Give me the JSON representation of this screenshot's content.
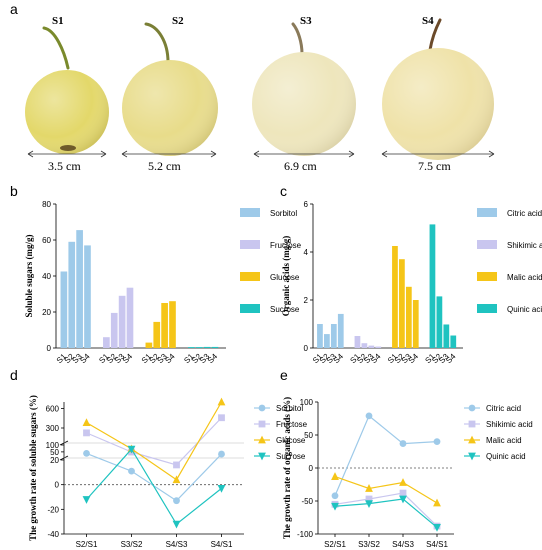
{
  "panels": {
    "a": "a",
    "b": "b",
    "c": "c",
    "d": "d",
    "e": "e"
  },
  "fruits": [
    {
      "stage": "S1",
      "size": "3.5 cm",
      "skin": "#e3d86a"
    },
    {
      "stage": "S2",
      "size": "5.2 cm",
      "skin": "#e8dc8a"
    },
    {
      "stage": "S3",
      "size": "6.9 cm",
      "skin": "#eee6bc"
    },
    {
      "stage": "S4",
      "size": "7.5 cm",
      "skin": "#efe2a8"
    }
  ],
  "chart_data": [
    {
      "id": "b",
      "type": "bar",
      "ylabel": "Soluble sugars (mg/g)",
      "ylim": [
        0,
        80
      ],
      "yticks": [
        0,
        20,
        40,
        60,
        80
      ],
      "categories": [
        "S1",
        "S2",
        "S3",
        "S4"
      ],
      "series": [
        {
          "name": "Sorbitol",
          "color": "#9ecae9",
          "values": [
            42.5,
            59,
            65.5,
            57
          ]
        },
        {
          "name": "Fructose",
          "color": "#c9c6ef",
          "values": [
            6,
            19.5,
            29,
            33.5
          ]
        },
        {
          "name": "Glucose",
          "color": "#f5c518",
          "values": [
            3,
            14.5,
            25,
            26
          ]
        },
        {
          "name": "Sucrose",
          "color": "#1fc3c0",
          "values": [
            0.5,
            0.5,
            0.6,
            0.6
          ]
        }
      ],
      "legend": "right"
    },
    {
      "id": "c",
      "type": "bar",
      "ylabel": "Organic acids (mg/g)",
      "ylim": [
        0,
        6
      ],
      "yticks": [
        0,
        2,
        4,
        6
      ],
      "categories": [
        "S1",
        "S2",
        "S3",
        "S4"
      ],
      "series": [
        {
          "name": "Citric acid",
          "color": "#9ecae9",
          "values": [
            1.0,
            0.58,
            1.0,
            1.42
          ]
        },
        {
          "name": "Shikimic acid",
          "color": "#c9c6ef",
          "values": [
            0.5,
            0.2,
            0.1,
            0.06
          ]
        },
        {
          "name": "Malic acid",
          "color": "#f5c518",
          "values": [
            4.25,
            3.7,
            2.55,
            2.0
          ]
        },
        {
          "name": "Quinic acid",
          "color": "#1fc3c0",
          "values": [
            5.15,
            2.15,
            0.98,
            0.52
          ]
        }
      ],
      "legend": "right"
    },
    {
      "id": "d",
      "type": "line",
      "ylabel": "The growth rate of soluble sugars (%)",
      "categories": [
        "S2/S1",
        "S3/S2",
        "S4/S3",
        "S4/S1"
      ],
      "yticks": [
        -40,
        -20,
        0,
        20,
        50,
        100,
        300,
        600
      ],
      "series": [
        {
          "name": "Sorbitol",
          "color": "#9ecae9",
          "marker": "circle",
          "values": [
            39,
            11,
            -13,
            34
          ]
        },
        {
          "name": "Fructose",
          "color": "#c9c6ef",
          "marker": "square",
          "values": [
            225,
            49,
            16,
            458
          ]
        },
        {
          "name": "Glucose",
          "color": "#f5c518",
          "marker": "triangle",
          "values": [
            383,
            72,
            4,
            767
          ]
        },
        {
          "name": "Sucrose",
          "color": "#1fc3c0",
          "marker": "triangle-down",
          "values": [
            -12,
            70,
            -32,
            -3
          ]
        }
      ],
      "reference_line": 0,
      "legend": "right"
    },
    {
      "id": "e",
      "type": "line",
      "ylabel": "The growth rate of organic acids (%)",
      "categories": [
        "S2/S1",
        "S3/S2",
        "S4/S3",
        "S4/S1"
      ],
      "ylim": [
        -100,
        100
      ],
      "yticks": [
        -100,
        -50,
        0,
        50,
        100
      ],
      "series": [
        {
          "name": "Citric acid",
          "color": "#9ecae9",
          "marker": "circle",
          "values": [
            -42,
            79,
            37,
            40
          ]
        },
        {
          "name": "Shikimic acid",
          "color": "#c9c6ef",
          "marker": "square",
          "values": [
            -55,
            -47,
            -38,
            -88
          ]
        },
        {
          "name": "Malic acid",
          "color": "#f5c518",
          "marker": "triangle",
          "values": [
            -13,
            -31,
            -22,
            -53
          ]
        },
        {
          "name": "Quinic acid",
          "color": "#1fc3c0",
          "marker": "triangle-down",
          "values": [
            -58,
            -54,
            -47,
            -90
          ]
        }
      ],
      "reference_line": 0,
      "legend": "right"
    }
  ]
}
